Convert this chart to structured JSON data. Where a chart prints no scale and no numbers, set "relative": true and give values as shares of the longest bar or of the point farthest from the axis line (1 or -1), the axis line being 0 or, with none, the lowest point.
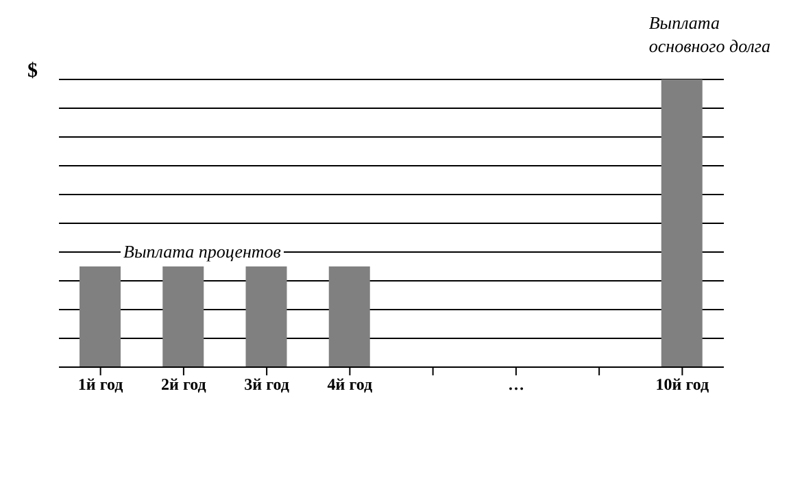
{
  "chart_data": {
    "type": "bar",
    "ylabel": "$",
    "categories": [
      "1й год",
      "2й год",
      "3й год",
      "4й год",
      null,
      "…",
      null,
      "10й год"
    ],
    "values": [
      0.35,
      0.35,
      0.35,
      0.35,
      null,
      null,
      null,
      1
    ],
    "color": "#808080",
    "relative": true,
    "grid": "y",
    "annotations": [
      "Выплата процентов",
      "Выплата\nосновного долга"
    ]
  }
}
